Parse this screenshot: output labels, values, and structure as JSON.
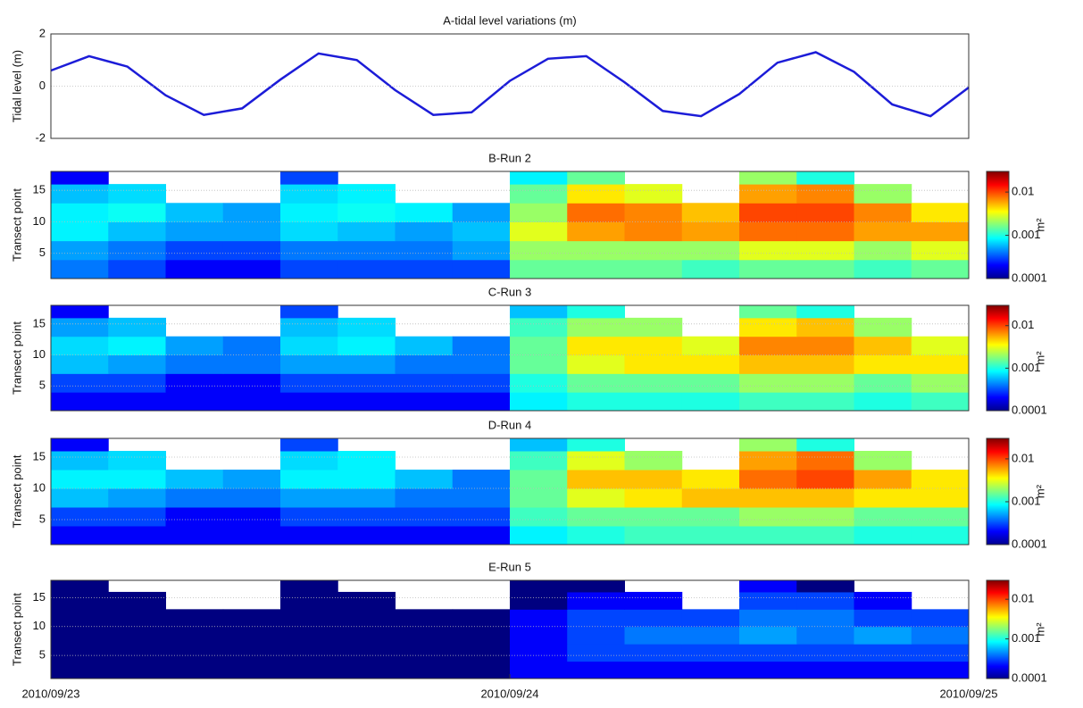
{
  "chart_data": [
    {
      "type": "line",
      "title": "A-tidal level variations (m)",
      "ylabel": "Tidal level (m)",
      "color": "#1c1cd8",
      "x": [
        0,
        2,
        4,
        6,
        8,
        10,
        12,
        14,
        16,
        18,
        20,
        22,
        24,
        26,
        28,
        30,
        32,
        34,
        36,
        38,
        40,
        42,
        44,
        46,
        48
      ],
      "values": [
        0.6,
        1.15,
        0.75,
        -0.35,
        -1.1,
        -0.85,
        0.25,
        1.25,
        1.0,
        -0.15,
        -1.1,
        -1.0,
        0.2,
        1.05,
        1.15,
        0.15,
        -0.95,
        -1.15,
        -0.3,
        0.9,
        1.3,
        0.55,
        -0.7,
        -1.15,
        -0.05
      ],
      "xlim": [
        0,
        48
      ],
      "ylim": [
        -2,
        2
      ],
      "yticks": [
        -2,
        0,
        2
      ],
      "grid": true
    },
    {
      "type": "heatmap",
      "title": "B-Run 2",
      "ylabel": "Transect point",
      "colorbar_label": "m²",
      "xlim": [
        0,
        48
      ],
      "ylim": [
        1,
        18
      ],
      "yticks": [
        5,
        10,
        15
      ],
      "xbins": [
        0,
        3,
        6,
        9,
        12,
        15,
        18,
        21,
        24,
        27,
        30,
        33,
        36,
        39,
        42,
        45,
        48
      ],
      "ybins": [
        1,
        4,
        7,
        10,
        13,
        16,
        18
      ],
      "clim": [
        0.0001,
        0.03
      ],
      "cticks": [
        0.0001,
        0.001,
        0.01
      ],
      "z": [
        [
          0.0004,
          0.0003,
          0.0002,
          0.0002,
          0.0003,
          0.0003,
          0.0003,
          0.0003,
          0.0015,
          0.0015,
          0.0015,
          0.0012,
          0.0015,
          0.0015,
          0.0012,
          0.0015
        ],
        [
          0.0005,
          0.0004,
          0.0003,
          0.0003,
          0.0004,
          0.0004,
          0.0004,
          0.0005,
          0.002,
          0.002,
          0.002,
          0.002,
          0.003,
          0.003,
          0.002,
          0.003
        ],
        [
          0.0008,
          0.0006,
          0.0005,
          0.0005,
          0.0007,
          0.0006,
          0.0005,
          0.0006,
          0.003,
          0.006,
          0.007,
          0.006,
          0.008,
          0.008,
          0.006,
          0.006
        ],
        [
          0.0008,
          0.0009,
          0.0006,
          0.0005,
          0.0008,
          0.0009,
          0.0008,
          0.0005,
          0.002,
          0.008,
          0.007,
          0.005,
          0.01,
          0.01,
          0.007,
          0.004
        ],
        [
          0.0006,
          0.0007,
          null,
          null,
          0.0007,
          0.0008,
          null,
          null,
          0.0015,
          0.004,
          0.003,
          null,
          0.006,
          0.007,
          0.002,
          null
        ],
        [
          0.0002,
          null,
          null,
          null,
          0.0003,
          null,
          null,
          null,
          0.0008,
          0.0015,
          null,
          null,
          0.002,
          0.001,
          null,
          null
        ]
      ]
    },
    {
      "type": "heatmap",
      "title": "C-Run 3",
      "ylabel": "Transect point",
      "colorbar_label": "m²",
      "xlim": [
        0,
        48
      ],
      "ylim": [
        1,
        18
      ],
      "yticks": [
        5,
        10,
        15
      ],
      "xbins": [
        0,
        3,
        6,
        9,
        12,
        15,
        18,
        21,
        24,
        27,
        30,
        33,
        36,
        39,
        42,
        45,
        48
      ],
      "ybins": [
        1,
        4,
        7,
        10,
        13,
        16,
        18
      ],
      "clim": [
        0.0001,
        0.03
      ],
      "cticks": [
        0.0001,
        0.001,
        0.01
      ],
      "z": [
        [
          0.0002,
          0.0002,
          0.0002,
          0.0002,
          0.0002,
          0.0002,
          0.0002,
          0.0002,
          0.0008,
          0.001,
          0.001,
          0.001,
          0.0012,
          0.0012,
          0.001,
          0.0012
        ],
        [
          0.0003,
          0.0003,
          0.0002,
          0.0002,
          0.0003,
          0.0003,
          0.0003,
          0.0003,
          0.001,
          0.0015,
          0.0015,
          0.0015,
          0.002,
          0.002,
          0.0015,
          0.002
        ],
        [
          0.0006,
          0.0005,
          0.0004,
          0.0004,
          0.0005,
          0.0005,
          0.0004,
          0.0004,
          0.0015,
          0.003,
          0.004,
          0.004,
          0.005,
          0.005,
          0.004,
          0.004
        ],
        [
          0.0007,
          0.0008,
          0.0005,
          0.0004,
          0.0007,
          0.0008,
          0.0006,
          0.0004,
          0.0015,
          0.004,
          0.004,
          0.003,
          0.007,
          0.007,
          0.005,
          0.003
        ],
        [
          0.0005,
          0.0006,
          null,
          null,
          0.0006,
          0.0007,
          null,
          null,
          0.0012,
          0.002,
          0.002,
          null,
          0.004,
          0.005,
          0.002,
          null
        ],
        [
          0.0002,
          null,
          null,
          null,
          0.0003,
          null,
          null,
          null,
          0.0006,
          0.001,
          null,
          null,
          0.0015,
          0.001,
          null,
          null
        ]
      ]
    },
    {
      "type": "heatmap",
      "title": "D-Run 4",
      "ylabel": "Transect point",
      "colorbar_label": "m²",
      "xlim": [
        0,
        48
      ],
      "ylim": [
        1,
        18
      ],
      "yticks": [
        5,
        10,
        15
      ],
      "xbins": [
        0,
        3,
        6,
        9,
        12,
        15,
        18,
        21,
        24,
        27,
        30,
        33,
        36,
        39,
        42,
        45,
        48
      ],
      "ybins": [
        1,
        4,
        7,
        10,
        13,
        16,
        18
      ],
      "clim": [
        0.0001,
        0.03
      ],
      "cticks": [
        0.0001,
        0.001,
        0.01
      ],
      "z": [
        [
          0.0002,
          0.0002,
          0.0002,
          0.0002,
          0.0002,
          0.0002,
          0.0002,
          0.0002,
          0.0008,
          0.001,
          0.0012,
          0.0012,
          0.0012,
          0.0012,
          0.001,
          0.001
        ],
        [
          0.0003,
          0.0003,
          0.0002,
          0.0002,
          0.0003,
          0.0003,
          0.0003,
          0.0003,
          0.0012,
          0.0015,
          0.0015,
          0.0015,
          0.002,
          0.002,
          0.0015,
          0.0015
        ],
        [
          0.0006,
          0.0005,
          0.0004,
          0.0004,
          0.0005,
          0.0005,
          0.0004,
          0.0004,
          0.0015,
          0.003,
          0.004,
          0.005,
          0.005,
          0.005,
          0.004,
          0.004
        ],
        [
          0.0008,
          0.0008,
          0.0006,
          0.0005,
          0.0008,
          0.0008,
          0.0006,
          0.0004,
          0.0015,
          0.005,
          0.005,
          0.004,
          0.008,
          0.01,
          0.006,
          0.004
        ],
        [
          0.0006,
          0.0007,
          null,
          null,
          0.0007,
          0.0008,
          null,
          null,
          0.0012,
          0.003,
          0.002,
          null,
          0.006,
          0.008,
          0.002,
          null
        ],
        [
          0.0002,
          null,
          null,
          null,
          0.0003,
          null,
          null,
          null,
          0.0006,
          0.001,
          null,
          null,
          0.002,
          0.001,
          null,
          null
        ]
      ]
    },
    {
      "type": "heatmap",
      "title": "E-Run 5",
      "ylabel": "Transect point",
      "colorbar_label": "m²",
      "xlim": [
        0,
        48
      ],
      "ylim": [
        1,
        18
      ],
      "yticks": [
        5,
        10,
        15
      ],
      "xticks": [
        {
          "value": 0,
          "label": "2010/09/23"
        },
        {
          "value": 24,
          "label": "2010/09/24"
        },
        {
          "value": 48,
          "label": "2010/09/25"
        }
      ],
      "xbins": [
        0,
        3,
        6,
        9,
        12,
        15,
        18,
        21,
        24,
        27,
        30,
        33,
        36,
        39,
        42,
        45,
        48
      ],
      "ybins": [
        1,
        4,
        7,
        10,
        13,
        16,
        18
      ],
      "clim": [
        0.0001,
        0.03
      ],
      "cticks": [
        0.0001,
        0.001,
        0.01
      ],
      "z": [
        [
          0.0001,
          0.0001,
          0.0001,
          0.0001,
          0.0001,
          0.0001,
          0.0001,
          0.0001,
          0.0002,
          0.0002,
          0.0002,
          0.0002,
          0.0002,
          0.0002,
          0.0002,
          0.0002
        ],
        [
          0.0001,
          0.0001,
          0.0001,
          0.0001,
          0.0001,
          0.0001,
          0.0001,
          0.0001,
          0.0002,
          0.0003,
          0.0003,
          0.0003,
          0.0003,
          0.0003,
          0.0003,
          0.0003
        ],
        [
          0.0001,
          0.0001,
          0.0001,
          0.0001,
          0.0001,
          0.0001,
          0.0001,
          0.0001,
          0.0002,
          0.0003,
          0.0004,
          0.0004,
          0.0005,
          0.0004,
          0.0005,
          0.0004
        ],
        [
          0.0001,
          0.0001,
          0.0001,
          0.0001,
          0.0001,
          0.0001,
          0.0001,
          0.0001,
          0.0002,
          0.0003,
          0.0003,
          0.0003,
          0.0004,
          0.0004,
          0.0003,
          0.0003
        ],
        [
          0.0001,
          0.0001,
          null,
          null,
          0.0001,
          0.0001,
          null,
          null,
          0.0001,
          0.0002,
          0.0002,
          null,
          0.0003,
          0.0003,
          0.0002,
          null
        ],
        [
          0.0001,
          null,
          null,
          null,
          0.0001,
          null,
          null,
          null,
          0.0001,
          0.0001,
          null,
          null,
          0.0002,
          0.0001,
          null,
          null
        ]
      ]
    }
  ]
}
